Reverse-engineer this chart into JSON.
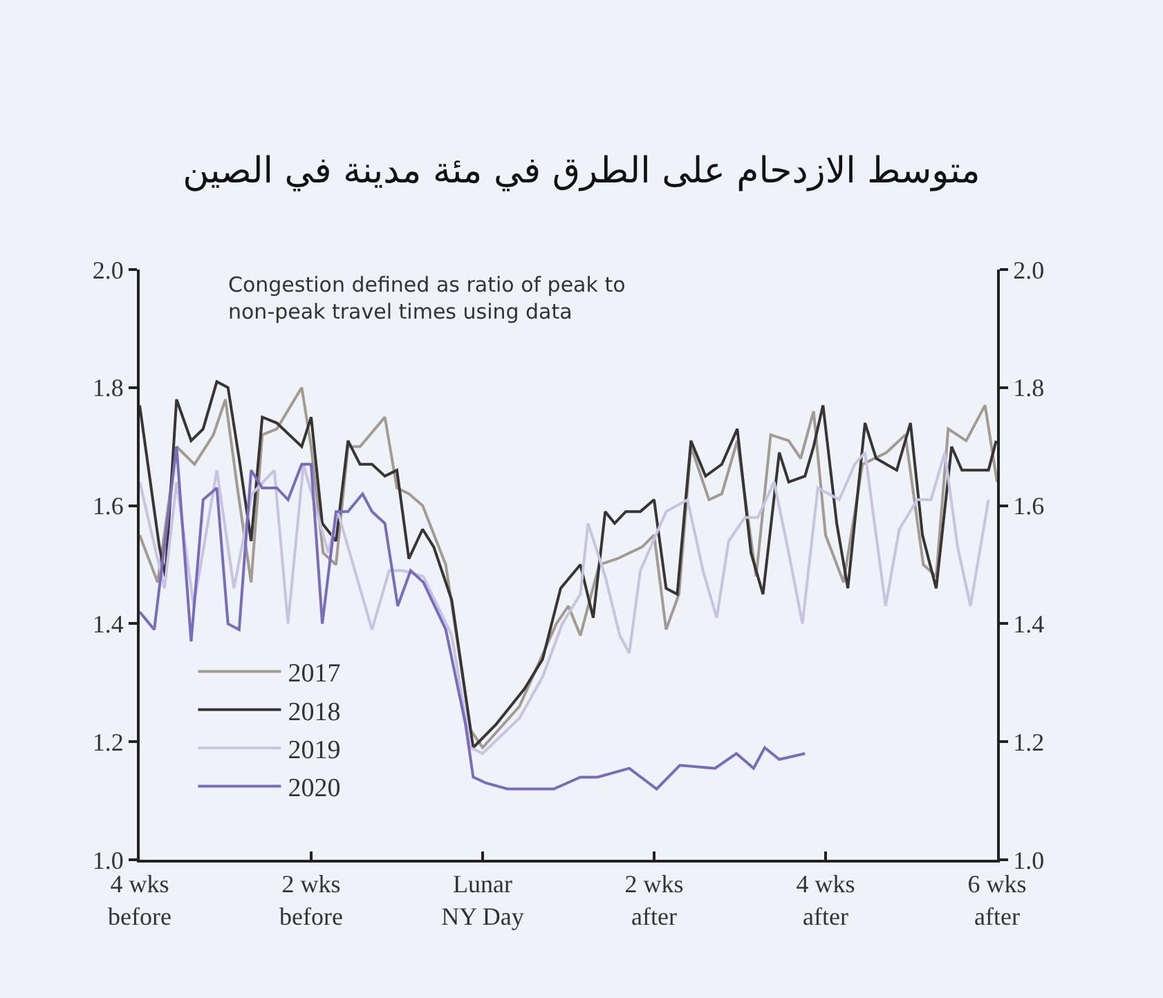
{
  "chart_data": {
    "type": "line",
    "title": "متوسط الازدحام على الطرق في مئة مدينة في الصين",
    "annotations": [
      "Congestion defined as ratio of peak to\nnon-peak travel times using data"
    ],
    "xlim": [
      -4,
      6
    ],
    "xticks": [
      {
        "value": -4,
        "label": "4 wks\nbefore"
      },
      {
        "value": -2,
        "label": "2 wks\nbefore"
      },
      {
        "value": 0,
        "label": "Lunar\nNY Day"
      },
      {
        "value": 2,
        "label": "2 wks\nafter"
      },
      {
        "value": 4,
        "label": "4 wks\nafter"
      },
      {
        "value": 6,
        "label": "6 wks\nafter"
      }
    ],
    "ylim": [
      1.0,
      2.0
    ],
    "yticks": [
      {
        "value": 1.0,
        "label": "1.0"
      },
      {
        "value": 1.2,
        "label": "1.2"
      },
      {
        "value": 1.4,
        "label": "1.4"
      },
      {
        "value": 1.6,
        "label": "1.6"
      },
      {
        "value": 1.8,
        "label": "1.8"
      },
      {
        "value": 2.0,
        "label": "2.0"
      }
    ],
    "y2lim": [
      1.0,
      2.0
    ],
    "y2ticks": [
      {
        "value": 1.0,
        "label": "1.0"
      },
      {
        "value": 1.2,
        "label": "1.2"
      },
      {
        "value": 1.4,
        "label": "1.4"
      },
      {
        "value": 1.6,
        "label": "1.6"
      },
      {
        "value": 1.8,
        "label": "1.8"
      },
      {
        "value": 2.0,
        "label": "2.0"
      }
    ],
    "grid": false,
    "legend": "bottom left",
    "marker": "none",
    "line_style": "solid",
    "series": [
      {
        "name": "2017",
        "color": "#a39a92",
        "x": [
          -4,
          -3.79,
          -3.57,
          -3.36,
          -3.14,
          -3,
          -2.86,
          -2.7,
          -2.57,
          -2.4,
          -2.11,
          -2,
          -1.86,
          -1.71,
          -1.57,
          -1.43,
          -1.14,
          -1,
          -0.86,
          -0.7,
          -0.43,
          -0.14,
          0,
          0.43,
          0.86,
          1,
          1.14,
          1.36,
          1.57,
          1.86,
          2,
          2.14,
          2.29,
          2.43,
          2.64,
          2.79,
          2.97,
          3.19,
          3.36,
          3.57,
          3.71,
          3.86,
          4,
          4.21,
          4.43,
          4.71,
          4.93,
          5.14,
          5.29,
          5.43,
          5.64,
          5.86,
          6
        ],
        "values": [
          1.55,
          1.47,
          1.7,
          1.67,
          1.72,
          1.78,
          1.63,
          1.47,
          1.72,
          1.73,
          1.8,
          1.7,
          1.52,
          1.5,
          1.7,
          1.7,
          1.75,
          1.63,
          1.62,
          1.6,
          1.5,
          1.22,
          1.19,
          1.26,
          1.4,
          1.43,
          1.38,
          1.5,
          1.51,
          1.53,
          1.55,
          1.39,
          1.45,
          1.7,
          1.61,
          1.62,
          1.71,
          1.48,
          1.72,
          1.71,
          1.68,
          1.76,
          1.55,
          1.47,
          1.67,
          1.69,
          1.72,
          1.5,
          1.48,
          1.73,
          1.71,
          1.77,
          1.64
        ]
      },
      {
        "name": "2018",
        "color": "#3a3535",
        "x": [
          -4,
          -3.77,
          -3.7,
          -3.57,
          -3.4,
          -3.26,
          -3.1,
          -2.97,
          -2.84,
          -2.7,
          -2.57,
          -2.4,
          -2.11,
          -2,
          -1.87,
          -1.71,
          -1.57,
          -1.43,
          -1.29,
          -1.14,
          -1,
          -0.86,
          -0.7,
          -0.57,
          -0.36,
          -0.11,
          0.16,
          0.49,
          0.7,
          0.91,
          1.14,
          1.29,
          1.43,
          1.54,
          1.67,
          1.84,
          2,
          2.14,
          2.27,
          2.43,
          2.6,
          2.79,
          2.97,
          3.13,
          3.27,
          3.46,
          3.57,
          3.76,
          3.86,
          3.97,
          4.13,
          4.26,
          4.46,
          4.59,
          4.83,
          4.99,
          5.13,
          5.29,
          5.47,
          5.59,
          5.77,
          5.9,
          5.99
        ],
        "values": [
          1.77,
          1.53,
          1.48,
          1.78,
          1.71,
          1.73,
          1.81,
          1.8,
          1.68,
          1.54,
          1.75,
          1.74,
          1.7,
          1.75,
          1.57,
          1.54,
          1.71,
          1.67,
          1.67,
          1.65,
          1.66,
          1.51,
          1.56,
          1.53,
          1.44,
          1.19,
          1.23,
          1.29,
          1.34,
          1.46,
          1.5,
          1.41,
          1.59,
          1.57,
          1.59,
          1.59,
          1.61,
          1.46,
          1.45,
          1.71,
          1.65,
          1.67,
          1.73,
          1.52,
          1.45,
          1.69,
          1.64,
          1.65,
          1.7,
          1.77,
          1.57,
          1.46,
          1.74,
          1.68,
          1.66,
          1.74,
          1.55,
          1.46,
          1.7,
          1.66,
          1.66,
          1.66,
          1.71
        ]
      },
      {
        "name": "2019",
        "color": "#c9c3e2",
        "x": [
          -4,
          -3.71,
          -3.57,
          -3.37,
          -3.1,
          -2.9,
          -2.69,
          -2.43,
          -2.27,
          -2.09,
          -1.8,
          -1.69,
          -1.29,
          -1.09,
          -0.93,
          -0.69,
          -0.36,
          -0.14,
          0,
          0.43,
          0.7,
          0.93,
          1.14,
          1.23,
          1.43,
          1.6,
          1.71,
          1.84,
          1.99,
          2.14,
          2.39,
          2.57,
          2.73,
          2.87,
          3.06,
          3.21,
          3.4,
          3.57,
          3.73,
          3.91,
          4.16,
          4.34,
          4.46,
          4.7,
          4.86,
          5.07,
          5.23,
          5.39,
          5.54,
          5.69,
          5.9
        ],
        "values": [
          1.64,
          1.46,
          1.64,
          1.43,
          1.66,
          1.46,
          1.62,
          1.66,
          1.4,
          1.67,
          1.52,
          1.59,
          1.39,
          1.49,
          1.49,
          1.48,
          1.38,
          1.19,
          1.18,
          1.24,
          1.31,
          1.4,
          1.45,
          1.57,
          1.48,
          1.38,
          1.35,
          1.49,
          1.54,
          1.59,
          1.61,
          1.49,
          1.41,
          1.54,
          1.58,
          1.58,
          1.64,
          1.52,
          1.4,
          1.63,
          1.61,
          1.67,
          1.69,
          1.43,
          1.56,
          1.61,
          1.61,
          1.69,
          1.53,
          1.43,
          1.61
        ]
      },
      {
        "name": "2020",
        "color": "#7b6bbf",
        "x": [
          -4,
          -3.83,
          -3.57,
          -3.4,
          -3.26,
          -3.1,
          -2.97,
          -2.84,
          -2.7,
          -2.57,
          -2.4,
          -2.27,
          -2.11,
          -2,
          -1.87,
          -1.71,
          -1.57,
          -1.4,
          -1.29,
          -1.14,
          -0.99,
          -0.84,
          -0.69,
          -0.43,
          -0.2,
          -0.11,
          0.04,
          0.29,
          0.57,
          0.83,
          1.14,
          1.34,
          1.71,
          2.03,
          2.3,
          2.71,
          2.96,
          3.16,
          3.29,
          3.46,
          3.76
        ],
        "values": [
          1.42,
          1.39,
          1.7,
          1.37,
          1.61,
          1.63,
          1.4,
          1.39,
          1.66,
          1.63,
          1.63,
          1.61,
          1.67,
          1.67,
          1.4,
          1.59,
          1.59,
          1.62,
          1.59,
          1.57,
          1.43,
          1.49,
          1.47,
          1.39,
          1.23,
          1.14,
          1.13,
          1.12,
          1.12,
          1.12,
          1.14,
          1.14,
          1.155,
          1.12,
          1.16,
          1.155,
          1.18,
          1.155,
          1.19,
          1.17,
          1.18
        ]
      }
    ]
  }
}
